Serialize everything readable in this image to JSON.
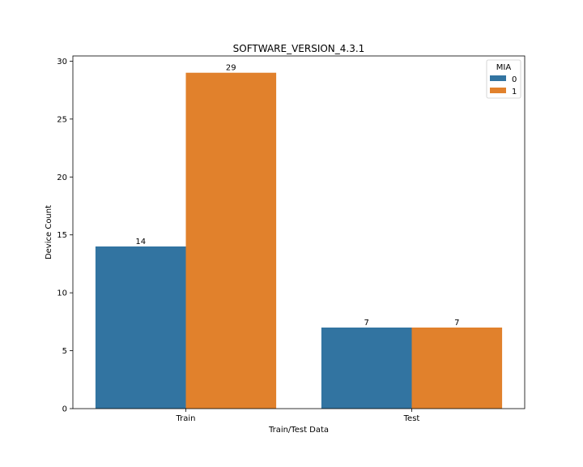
{
  "chart_data": {
    "type": "bar",
    "title": "SOFTWARE_VERSION_4.3.1",
    "xlabel": "Train/Test Data",
    "ylabel": "Device Count",
    "categories": [
      "Train",
      "Test"
    ],
    "ylim": [
      0,
      30.45
    ],
    "yticks": [
      0,
      5,
      10,
      15,
      20,
      25,
      30
    ],
    "grid": false,
    "legend": {
      "title": "MIA",
      "position": "top-right"
    },
    "series": [
      {
        "name": "0",
        "color": "#3274a1",
        "values": [
          14,
          7
        ]
      },
      {
        "name": "1",
        "color": "#e1812c",
        "values": [
          29,
          7
        ]
      }
    ],
    "data_labels": [
      "14",
      "7",
      "29",
      "7"
    ]
  }
}
